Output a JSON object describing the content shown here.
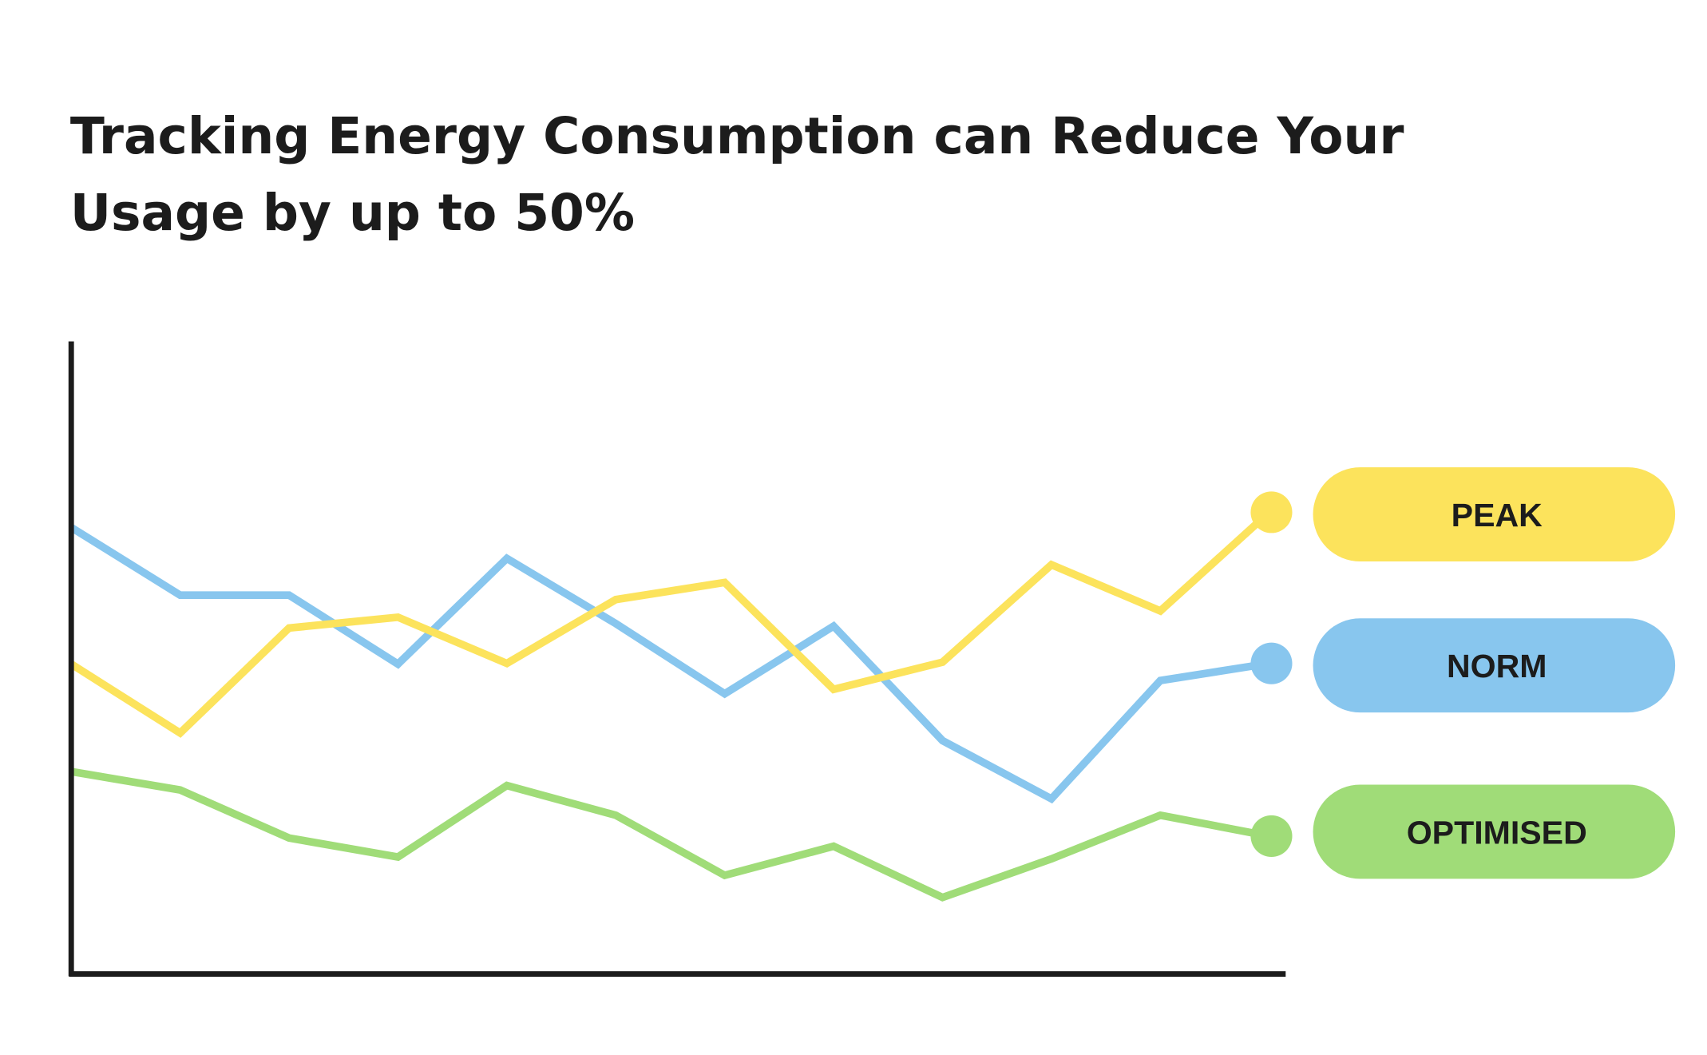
{
  "chart_data": {
    "type": "line",
    "title_lines": [
      "Tracking Energy Consumption can Reduce Your",
      "Usage by up to 50%"
    ],
    "xlabel": "",
    "ylabel": "",
    "x": [
      0,
      1,
      2,
      3,
      4,
      5,
      6,
      7,
      8,
      9,
      10,
      11
    ],
    "xlim": [
      0,
      11
    ],
    "ylim": [
      0,
      100
    ],
    "grid": false,
    "legend_placement": "right",
    "series": [
      {
        "name": "PEAK",
        "color": "#FCE35C",
        "values": [
          49.0,
          38.1,
          54.7,
          56.4,
          49.1,
          59.2,
          61.9,
          45.0,
          49.3,
          64.7,
          57.4,
          73.0
        ]
      },
      {
        "name": "NORM",
        "color": "#88C6EE",
        "values": [
          70.6,
          59.9,
          59.9,
          49.0,
          65.7,
          55.4,
          44.3,
          55.0,
          36.9,
          27.7,
          46.4,
          49.1
        ]
      },
      {
        "name": "OPTIMISED",
        "color": "#A0DC78",
        "values": [
          32.0,
          29.1,
          21.5,
          18.5,
          29.8,
          25.1,
          15.6,
          20.2,
          12.1,
          18.2,
          25.1,
          21.8
        ]
      }
    ]
  }
}
